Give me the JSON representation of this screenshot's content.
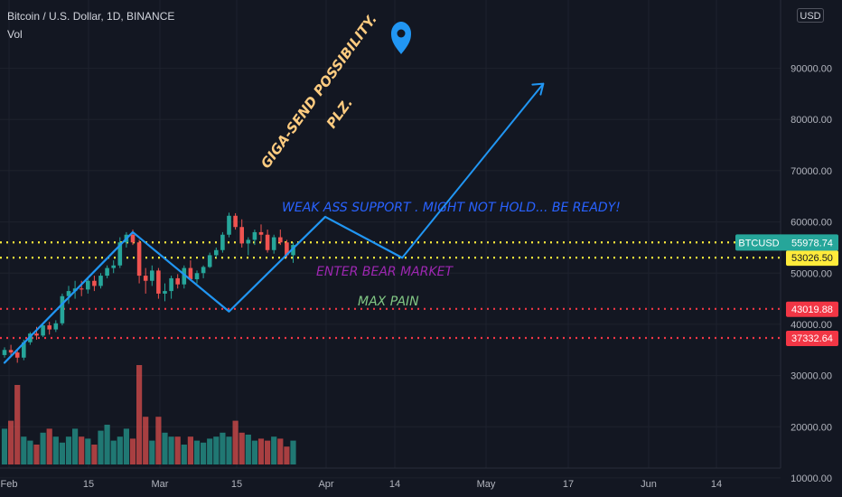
{
  "header": {
    "title": "Bitcoin / U.S. Dollar, 1D, BINANCE",
    "indicator": "Vol",
    "currency": "USD"
  },
  "chart_data": {
    "type": "candlestick",
    "symbol": "BTCUSD",
    "y_axis": {
      "ticks": [
        90000,
        80000,
        70000,
        60000,
        50000,
        40000,
        30000,
        20000,
        10000
      ],
      "tick_labels": [
        "90000.00",
        "80000.00",
        "70000.00",
        "60000.00",
        "50000.00",
        "40000.00",
        "30000.00",
        "20000.00",
        "10000.00"
      ],
      "ylim": [
        0,
        91000
      ]
    },
    "x_axis": {
      "tick_labels": [
        "Feb",
        "15",
        "Mar",
        "15",
        "Apr",
        "14",
        "May",
        "17",
        "Jun",
        "14"
      ]
    },
    "price_lines": [
      {
        "value": 55999.83,
        "label": "55999.83",
        "color": "#ffeb3b"
      },
      {
        "value": 53026.5,
        "label": "53026.50",
        "color": "#ffeb3b"
      },
      {
        "value": 43019.88,
        "label": "43019.88",
        "color": "#f23645"
      },
      {
        "value": 37332.64,
        "label": "37332.64",
        "color": "#f23645"
      }
    ],
    "current_price": {
      "symbol": "BTCUSD",
      "value": 55978.74,
      "label": "55978.74",
      "color": "#26a69a"
    },
    "zigzag_path": [
      [
        0,
        32500
      ],
      [
        20,
        58000
      ],
      [
        35,
        42500
      ],
      [
        50,
        61000
      ],
      [
        62,
        53000
      ],
      [
        84,
        87000
      ]
    ],
    "candles": [
      [
        34000,
        35500,
        33500,
        35000,
        9000
      ],
      [
        35000,
        36000,
        33800,
        34500,
        11000
      ],
      [
        34500,
        35200,
        32500,
        33500,
        20000
      ],
      [
        33500,
        37000,
        33000,
        36500,
        7000
      ],
      [
        36500,
        38500,
        36000,
        38200,
        6000
      ],
      [
        38200,
        39500,
        37000,
        37800,
        5000
      ],
      [
        37800,
        40000,
        37500,
        39800,
        8000
      ],
      [
        39800,
        40500,
        38000,
        39000,
        9000
      ],
      [
        39000,
        40800,
        38500,
        40200,
        7000
      ],
      [
        40200,
        46000,
        39800,
        45500,
        5500
      ],
      [
        45500,
        47500,
        44000,
        46500,
        7000
      ],
      [
        46500,
        48500,
        45000,
        47000,
        9000
      ],
      [
        47000,
        48500,
        45500,
        46800,
        7000
      ],
      [
        46800,
        49000,
        46000,
        48500,
        6500
      ],
      [
        48500,
        49500,
        46500,
        47500,
        5000
      ],
      [
        47500,
        50000,
        47000,
        49500,
        8500
      ],
      [
        49500,
        51500,
        49000,
        51000,
        10000
      ],
      [
        51000,
        52500,
        50000,
        51500,
        6000
      ],
      [
        51500,
        57000,
        51000,
        56000,
        7000
      ],
      [
        56000,
        58000,
        55000,
        57500,
        9000
      ],
      [
        57500,
        58500,
        55500,
        56000,
        6500
      ],
      [
        56000,
        56500,
        48000,
        49500,
        25000
      ],
      [
        49500,
        51000,
        46000,
        48500,
        12000
      ],
      [
        48500,
        51500,
        47500,
        50500,
        6000
      ],
      [
        50500,
        51000,
        45000,
        46000,
        12000
      ],
      [
        46000,
        48000,
        44500,
        46500,
        8000
      ],
      [
        46500,
        49500,
        45000,
        49000,
        7000
      ],
      [
        49000,
        49800,
        47000,
        47800,
        7000
      ],
      [
        47800,
        51500,
        47000,
        51000,
        5000
      ],
      [
        51000,
        52500,
        48500,
        48800,
        7000
      ],
      [
        48800,
        50500,
        48000,
        50000,
        6000
      ],
      [
        50000,
        51500,
        49000,
        51200,
        5500
      ],
      [
        51200,
        54000,
        51000,
        53500,
        6500
      ],
      [
        53500,
        55000,
        53000,
        54500,
        7000
      ],
      [
        54500,
        58000,
        54000,
        57500,
        8000
      ],
      [
        57500,
        61800,
        57000,
        61200,
        7000
      ],
      [
        61200,
        61700,
        58500,
        59000,
        11000
      ],
      [
        59000,
        60500,
        55000,
        55800,
        8000
      ],
      [
        55800,
        57000,
        53500,
        56500,
        7500
      ],
      [
        56500,
        58500,
        55500,
        58000,
        6000
      ],
      [
        58000,
        59500,
        56000,
        57500,
        6500
      ],
      [
        57500,
        58500,
        54000,
        54500,
        6000
      ],
      [
        54500,
        57500,
        53800,
        57000,
        7000
      ],
      [
        57000,
        58500,
        55500,
        56000,
        6500
      ],
      [
        56000,
        56500,
        53000,
        53500,
        4500
      ],
      [
        53500,
        56000,
        52000,
        55500,
        6000
      ]
    ],
    "annotations": [
      {
        "text": "GIGA-SEND POSSIBILITY.",
        "color": "#ffcc80"
      },
      {
        "text": "PLZ.",
        "color": "#ffcc80"
      },
      {
        "text": "WEAK ASS SUPPORT . MIGHT NOT HOLD... BE READY!",
        "color": "#2962ff"
      },
      {
        "text": "ENTER BEAR MARKET",
        "color": "#9c27b0"
      },
      {
        "text": "MAX PAIN",
        "color": "#81c784"
      }
    ],
    "colors": {
      "background": "#131722",
      "up": "#26a69a",
      "down": "#ef5350",
      "grid": "#1e222d",
      "drawing": "#2196f3"
    }
  }
}
